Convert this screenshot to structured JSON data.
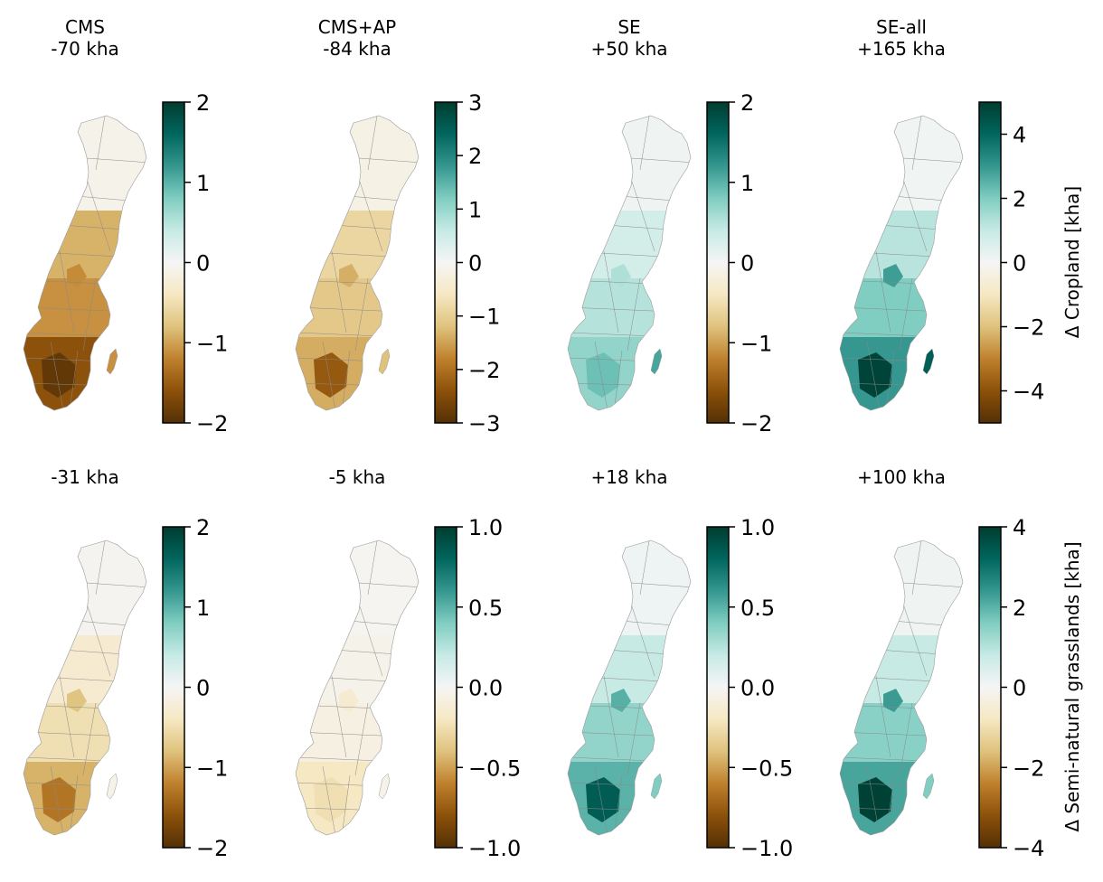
{
  "chart_data": {
    "type": "choropleth-grid",
    "colormap": [
      "#543005",
      "#8c510a",
      "#bf812d",
      "#dfc27d",
      "#f6e8c3",
      "#f5f5f5",
      "#c7eae5",
      "#80cdc1",
      "#35978f",
      "#01665e",
      "#003c30"
    ],
    "row_labels": [
      "Δ Cropland [kha]",
      "Δ Semi-natural grasslands [kha]"
    ],
    "panels": [
      {
        "row": 0,
        "col": 0,
        "title_lines": [
          "CMS",
          "-70 kha"
        ],
        "vlim": [
          -2,
          2
        ],
        "ticks": [
          {
            "v": 2,
            "t": "2"
          },
          {
            "v": 1,
            "t": "1"
          },
          {
            "v": 0,
            "t": "0"
          },
          {
            "v": -1,
            "t": "−1"
          },
          {
            "v": -2,
            "t": "−2"
          }
        ],
        "north": -0.1,
        "mid": -0.9,
        "east": -1.1,
        "south": -1.6,
        "hot": -1.9,
        "island": -1.1
      },
      {
        "row": 0,
        "col": 1,
        "title_lines": [
          "CMS+AP",
          "-84 kha"
        ],
        "vlim": [
          -3,
          3
        ],
        "ticks": [
          {
            "v": 3,
            "t": "3"
          },
          {
            "v": 2,
            "t": "2"
          },
          {
            "v": 1,
            "t": "1"
          },
          {
            "v": 0,
            "t": "0"
          },
          {
            "v": -1,
            "t": "−1"
          },
          {
            "v": -2,
            "t": "−2"
          },
          {
            "v": -3,
            "t": "−3"
          }
        ],
        "north": -0.2,
        "mid": -0.9,
        "east": -1.1,
        "south": -1.4,
        "hot": -2.3,
        "island": -1.2
      },
      {
        "row": 0,
        "col": 2,
        "title_lines": [
          "SE",
          "+50 kha"
        ],
        "vlim": [
          -2,
          2
        ],
        "ticks": [
          {
            "v": 2,
            "t": "2"
          },
          {
            "v": 1,
            "t": "1"
          },
          {
            "v": 0,
            "t": "0"
          },
          {
            "v": -1,
            "t": "−1"
          },
          {
            "v": -2,
            "t": "−2"
          }
        ],
        "north": 0.05,
        "mid": 0.3,
        "east": 0.5,
        "south": 0.7,
        "hot": 0.9,
        "island": 1.1
      },
      {
        "row": 0,
        "col": 3,
        "title_lines": [
          "SE-all",
          "+165 kha"
        ],
        "vlim": [
          -5,
          5
        ],
        "ticks": [
          {
            "v": 4,
            "t": "4"
          },
          {
            "v": 2,
            "t": "2"
          },
          {
            "v": 0,
            "t": "0"
          },
          {
            "v": -2,
            "t": "−2"
          },
          {
            "v": -4,
            "t": "−4"
          }
        ],
        "north": 0.1,
        "mid": 1.2,
        "east": 2.0,
        "south": 3.0,
        "hot": 4.8,
        "island": 4.2
      },
      {
        "row": 1,
        "col": 0,
        "title_lines": [
          "-31 kha"
        ],
        "vlim": [
          -2,
          2
        ],
        "ticks": [
          {
            "v": 2,
            "t": "2"
          },
          {
            "v": 1,
            "t": "1"
          },
          {
            "v": 0,
            "t": "0"
          },
          {
            "v": -1,
            "t": "−1"
          },
          {
            "v": -2,
            "t": "−2"
          }
        ],
        "north": -0.05,
        "mid": -0.3,
        "east": -0.5,
        "south": -0.9,
        "hot": -1.3,
        "island": -0.1
      },
      {
        "row": 1,
        "col": 1,
        "title_lines": [
          "-5 kha"
        ],
        "vlim": [
          -1,
          1
        ],
        "ticks": [
          {
            "v": 1,
            "t": "1.0"
          },
          {
            "v": 0.5,
            "t": "0.5"
          },
          {
            "v": 0,
            "t": "0.0"
          },
          {
            "v": -0.5,
            "t": "−0.5"
          },
          {
            "v": -1,
            "t": "−1.0"
          }
        ],
        "north": -0.02,
        "mid": -0.05,
        "east": -0.08,
        "south": -0.2,
        "hot": -0.25,
        "island": -0.05
      },
      {
        "row": 1,
        "col": 2,
        "title_lines": [
          "+18 kha"
        ],
        "vlim": [
          -1,
          1
        ],
        "ticks": [
          {
            "v": 1,
            "t": "1.0"
          },
          {
            "v": 0.5,
            "t": "0.5"
          },
          {
            "v": 0,
            "t": "0.0"
          },
          {
            "v": -0.5,
            "t": "−0.5"
          },
          {
            "v": -1,
            "t": "−1.0"
          }
        ],
        "north": 0.03,
        "mid": 0.2,
        "east": 0.35,
        "south": 0.5,
        "hot": 0.85,
        "island": 0.4
      },
      {
        "row": 1,
        "col": 3,
        "title_lines": [
          "+100 kha"
        ],
        "vlim": [
          -4,
          4
        ],
        "ticks": [
          {
            "v": 4,
            "t": "4"
          },
          {
            "v": 2,
            "t": "2"
          },
          {
            "v": 0,
            "t": "0"
          },
          {
            "v": -2,
            "t": "−2"
          },
          {
            "v": -4,
            "t": "−4"
          }
        ],
        "north": 0.1,
        "mid": 0.8,
        "east": 1.5,
        "south": 2.2,
        "hot": 3.9,
        "island": 1.6
      }
    ]
  }
}
